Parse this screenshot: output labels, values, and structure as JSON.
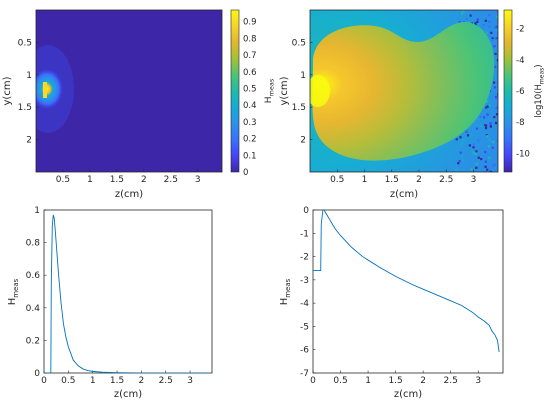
{
  "colors": {
    "axis": "#262626",
    "line": "#0072bd",
    "cmap_low": "#3e26a8",
    "cmap_high": "#f9fb0e"
  },
  "chart_data": [
    {
      "id": "top-left",
      "type": "heatmap",
      "title": "",
      "xlabel": "z(cm)",
      "ylabel": "y(cm)",
      "xlim": [
        0,
        3.45
      ],
      "ylim": [
        2.5,
        0
      ],
      "y_reversed": true,
      "xticks": [
        "0.5",
        "1",
        "1.5",
        "2",
        "2.5",
        "3"
      ],
      "yticks": [
        "0.5",
        "1",
        "1.5",
        "2"
      ],
      "colorbar": {
        "label": "H_meas",
        "label_main": "H",
        "label_sub": "meas",
        "range": [
          0,
          0.97
        ],
        "ticks": [
          "0",
          "0.1",
          "0.2",
          "0.3",
          "0.4",
          "0.5",
          "0.6",
          "0.7",
          "0.8",
          "0.9"
        ]
      },
      "source": {
        "z": 0.15,
        "y": 1.05,
        "peak": 0.97
      }
    },
    {
      "id": "top-right",
      "type": "heatmap",
      "title": "",
      "xlabel": "z(cm)",
      "ylabel": "y(cm)",
      "xlim": [
        0,
        3.45
      ],
      "ylim": [
        2.5,
        0
      ],
      "y_reversed": true,
      "xticks": [
        "0.5",
        "1",
        "1.5",
        "2",
        "2.5",
        "3"
      ],
      "yticks": [
        "0.5",
        "1",
        "1.5",
        "2"
      ],
      "colorbar": {
        "label": "log10(H_meas)",
        "label_main": "log10(H",
        "label_sub": "meas",
        "label_end": ")",
        "range": [
          -11.2,
          -0.8
        ],
        "ticks": [
          "-10",
          "-8",
          "-6",
          "-4",
          "-2"
        ]
      },
      "source": {
        "z": 0.15,
        "y": 1.05,
        "peak": -1.0
      }
    },
    {
      "id": "bottom-left",
      "type": "line",
      "title": "",
      "xlabel": "z(cm)",
      "ylabel": "H_meas",
      "ylabel_main": "H",
      "ylabel_sub": "meas",
      "xlim": [
        0,
        3.45
      ],
      "ylim": [
        0,
        1
      ],
      "xticks": [
        "0",
        "0.5",
        "1",
        "1.5",
        "2",
        "2.5",
        "3"
      ],
      "yticks": [
        "0",
        "0.2",
        "0.4",
        "0.6",
        "0.8",
        "1"
      ],
      "x": [
        0.0,
        0.14,
        0.15,
        0.17,
        0.19,
        0.21,
        0.23,
        0.25,
        0.28,
        0.3,
        0.35,
        0.4,
        0.45,
        0.5,
        0.6,
        0.7,
        0.8,
        0.9,
        1.0,
        1.2,
        1.5,
        2.0,
        2.5,
        3.0,
        3.4
      ],
      "y": [
        0.0,
        0.0,
        0.55,
        0.9,
        0.97,
        0.95,
        0.88,
        0.8,
        0.68,
        0.6,
        0.43,
        0.3,
        0.22,
        0.16,
        0.08,
        0.045,
        0.025,
        0.015,
        0.01,
        0.005,
        0.002,
        0.0,
        0.0,
        0.0,
        0.0
      ]
    },
    {
      "id": "bottom-right",
      "type": "line",
      "title": "",
      "xlabel": "z(cm)",
      "ylabel": "H_meas",
      "ylabel_main": "H",
      "ylabel_sub": "meas",
      "xlim": [
        0,
        3.45
      ],
      "ylim": [
        -7,
        0
      ],
      "xticks": [
        "0",
        "0.5",
        "1",
        "1.5",
        "2",
        "2.5",
        "3"
      ],
      "yticks": [
        "0",
        "-1",
        "-2",
        "-3",
        "-4",
        "-5",
        "-6",
        "-7"
      ],
      "x": [
        0.0,
        0.14,
        0.15,
        0.18,
        0.2,
        0.25,
        0.3,
        0.4,
        0.5,
        0.6,
        0.7,
        0.8,
        0.9,
        1.0,
        1.2,
        1.5,
        1.8,
        2.0,
        2.2,
        2.5,
        2.7,
        2.9,
        3.0,
        3.1,
        3.2,
        3.25,
        3.3,
        3.35,
        3.38
      ],
      "y": [
        -2.6,
        -2.6,
        -0.6,
        0.0,
        0.0,
        -0.2,
        -0.4,
        -0.8,
        -1.1,
        -1.35,
        -1.6,
        -1.8,
        -2.0,
        -2.15,
        -2.45,
        -2.85,
        -3.2,
        -3.4,
        -3.6,
        -3.9,
        -4.1,
        -4.4,
        -4.6,
        -4.75,
        -4.95,
        -5.2,
        -5.35,
        -5.6,
        -6.1
      ]
    }
  ]
}
